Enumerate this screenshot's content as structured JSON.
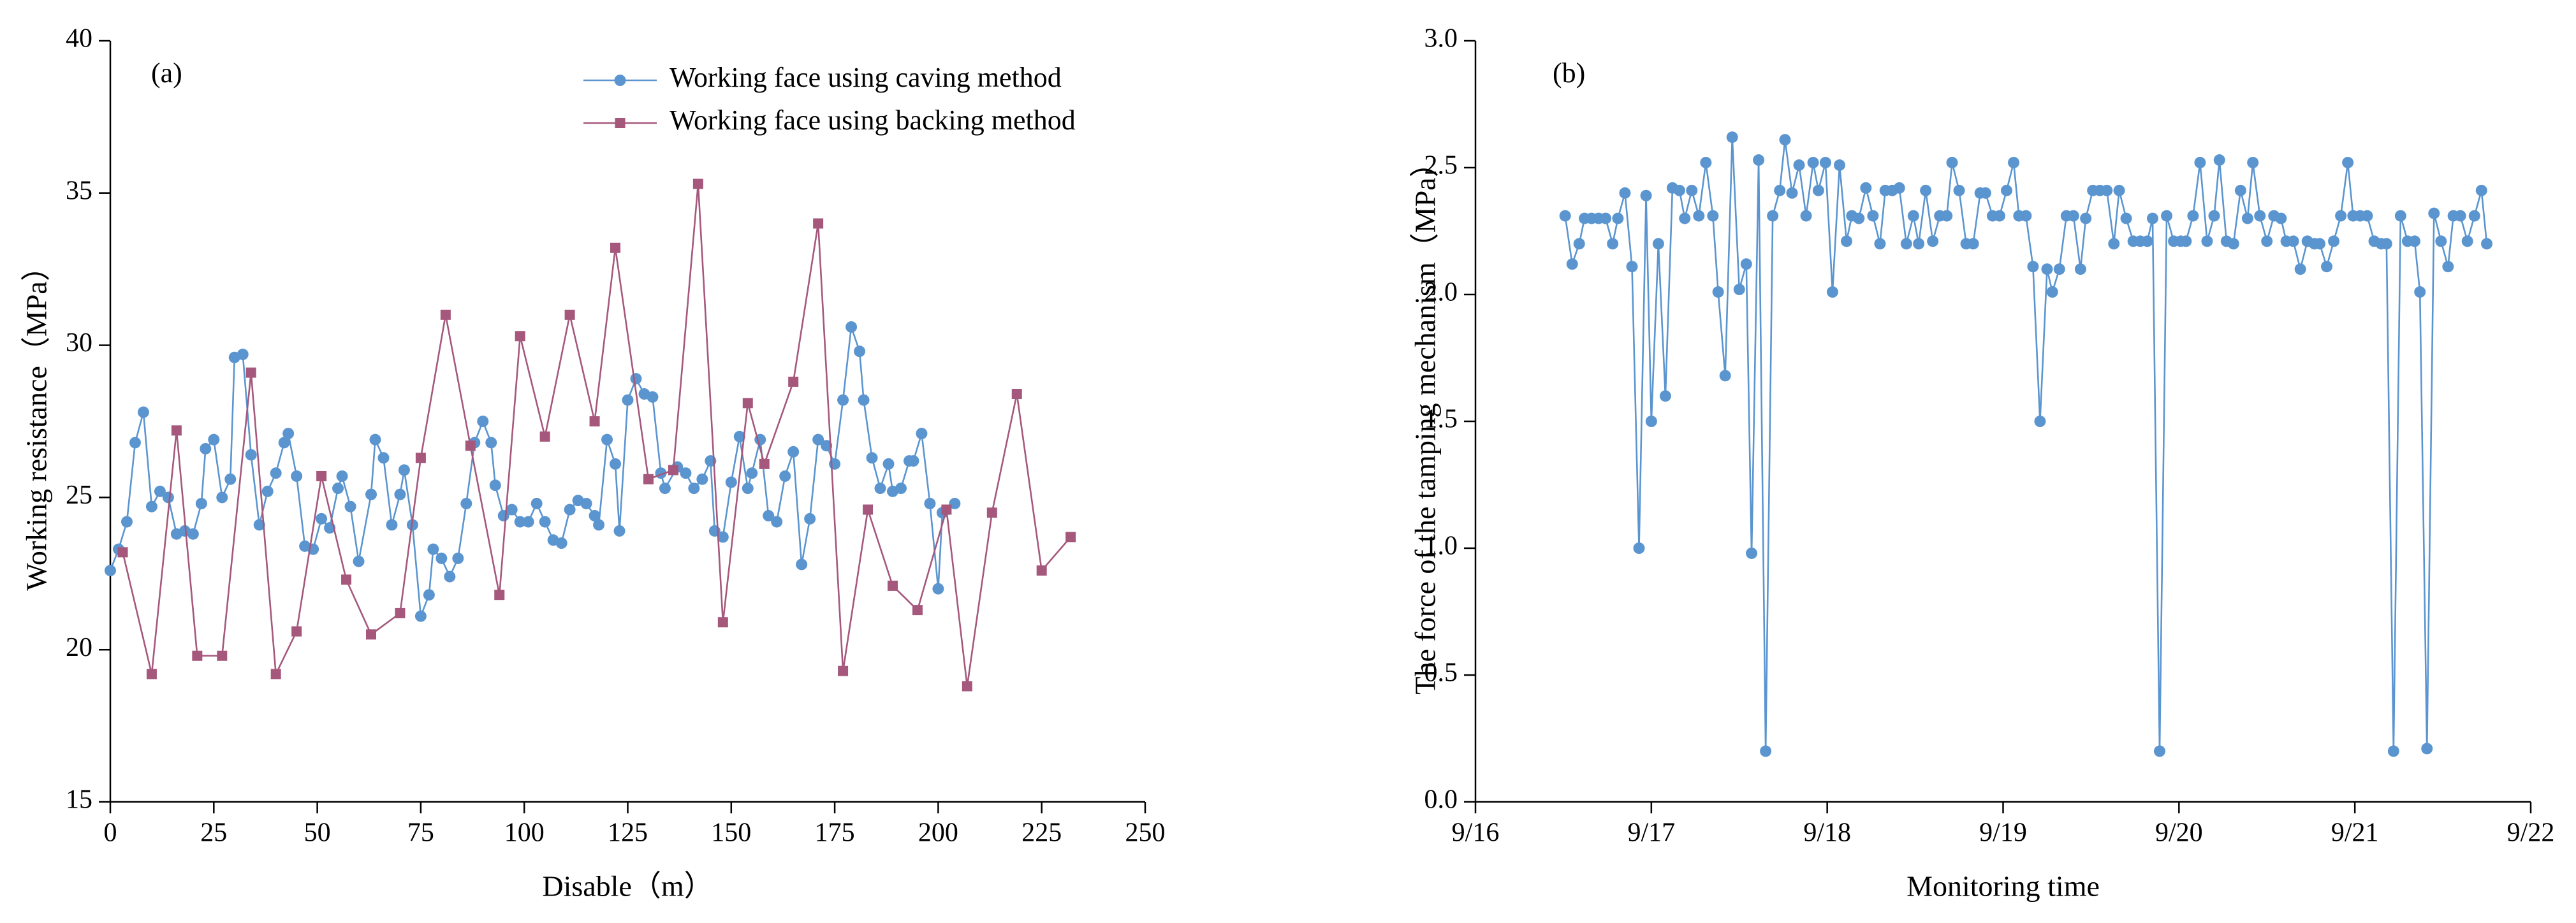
{
  "chart_data": [
    {
      "type": "line",
      "annotation": "(a)",
      "x_label": "Disable（m）",
      "y_label": "Working resistance（MPa）",
      "xlim": [
        0,
        250
      ],
      "xticks": [
        0,
        25,
        50,
        75,
        100,
        125,
        150,
        175,
        200,
        225,
        250
      ],
      "ylim": [
        15,
        40
      ],
      "yticks": [
        15,
        20,
        25,
        30,
        35,
        40
      ],
      "legend": "upper right",
      "series": [
        {
          "name": "Working face using caving method",
          "color": "#5b95d0",
          "marker": "circle",
          "x": [
            0,
            2,
            4,
            6,
            8,
            10,
            12,
            14,
            16,
            18,
            20,
            22,
            23,
            25,
            27,
            29,
            30,
            32,
            34,
            36,
            38,
            40,
            42,
            43,
            45,
            47,
            49,
            51,
            53,
            55,
            56,
            58,
            60,
            63,
            64,
            66,
            68,
            70,
            71,
            73,
            75,
            77,
            78,
            80,
            82,
            84,
            86,
            88,
            90,
            92,
            93,
            95,
            97,
            99,
            101,
            103,
            105,
            107,
            109,
            111,
            113,
            115,
            117,
            118,
            120,
            122,
            123,
            125,
            127,
            129,
            131,
            133,
            134,
            137,
            139,
            141,
            143,
            145,
            146,
            148,
            150,
            152,
            154,
            155,
            157,
            159,
            161,
            163,
            165,
            167,
            169,
            171,
            173,
            175,
            177,
            179,
            181,
            182,
            184,
            186,
            188,
            189,
            191,
            193,
            194,
            196,
            198,
            200,
            201,
            204
          ],
          "values": [
            22.6,
            23.3,
            24.2,
            26.8,
            27.8,
            24.7,
            25.2,
            25.0,
            23.8,
            23.9,
            23.8,
            24.8,
            26.6,
            26.9,
            25.0,
            25.6,
            29.6,
            29.7,
            26.4,
            24.1,
            25.2,
            25.8,
            26.8,
            27.1,
            25.7,
            23.4,
            23.3,
            24.3,
            24.0,
            25.3,
            25.7,
            24.7,
            22.9,
            25.1,
            26.9,
            26.3,
            24.1,
            25.1,
            25.9,
            24.1,
            21.1,
            21.8,
            23.3,
            23.0,
            22.4,
            23.0,
            24.8,
            26.8,
            27.5,
            26.8,
            25.4,
            24.4,
            24.6,
            24.2,
            24.2,
            24.8,
            24.2,
            23.6,
            23.5,
            24.6,
            24.9,
            24.8,
            24.4,
            24.1,
            26.9,
            26.1,
            23.9,
            28.2,
            28.9,
            28.4,
            28.3,
            25.8,
            25.3,
            26.0,
            25.8,
            25.3,
            25.6,
            26.2,
            23.9,
            23.7,
            25.5,
            27.0,
            25.3,
            25.8,
            26.9,
            24.4,
            24.2,
            25.7,
            26.5,
            22.8,
            24.3,
            26.9,
            26.7,
            26.1,
            28.2,
            30.6,
            29.8,
            28.2,
            26.3,
            25.3,
            26.1,
            25.2,
            25.3,
            26.2,
            26.2,
            27.1,
            24.8,
            22.0,
            24.5,
            24.8
          ]
        },
        {
          "name": "Working face using backing method",
          "color": "#a5587c",
          "marker": "square",
          "x": [
            3,
            10,
            16,
            21,
            27,
            34,
            40,
            45,
            51,
            57,
            63,
            70,
            75,
            81,
            87,
            94,
            99,
            105,
            111,
            117,
            122,
            130,
            136,
            142,
            148,
            154,
            158,
            165,
            171,
            177,
            183,
            189,
            195,
            202,
            207,
            213,
            219,
            225,
            232
          ],
          "values": [
            23.2,
            19.2,
            27.2,
            19.8,
            19.8,
            29.1,
            19.2,
            20.6,
            25.7,
            22.3,
            20.5,
            21.2,
            26.3,
            31.0,
            26.7,
            21.8,
            30.3,
            27.0,
            31.0,
            27.5,
            33.2,
            25.6,
            25.9,
            35.3,
            20.9,
            28.1,
            26.1,
            28.8,
            34.0,
            19.3,
            24.6,
            22.1,
            21.3,
            24.6,
            18.8,
            24.5,
            28.4,
            22.6,
            23.7
          ]
        }
      ]
    },
    {
      "type": "line",
      "annotation": "(b)",
      "x_label": "Monitoring time",
      "y_label": "The force of the tamping mechanism（MPa）",
      "xlim": [
        16,
        22
      ],
      "xticks": [
        {
          "value": 16,
          "label": "9/16"
        },
        {
          "value": 17,
          "label": "9/17"
        },
        {
          "value": 18,
          "label": "9/18"
        },
        {
          "value": 19,
          "label": "9/19"
        },
        {
          "value": 20,
          "label": "9/20"
        },
        {
          "value": 21,
          "label": "9/21"
        },
        {
          "value": 22,
          "label": "9/22"
        }
      ],
      "ylim": [
        0,
        3
      ],
      "yticks": [
        {
          "value": 0,
          "label": "0.0"
        },
        0.5,
        {
          "value": 1,
          "label": "1.0"
        },
        1.5,
        {
          "value": 2,
          "label": "2.0"
        },
        2.5,
        {
          "value": 3,
          "label": "3.0"
        }
      ],
      "series": [
        {
          "color": "#5b95d0",
          "marker": "circle",
          "x": [
            16.51,
            16.55,
            16.59,
            16.62,
            16.66,
            16.7,
            16.74,
            16.78,
            16.81,
            16.85,
            16.89,
            16.93,
            16.97,
            17.0,
            17.04,
            17.08,
            17.12,
            17.16,
            17.19,
            17.23,
            17.27,
            17.31,
            17.35,
            17.38,
            17.42,
            17.46,
            17.5,
            17.54,
            17.57,
            17.61,
            17.65,
            17.69,
            17.73,
            17.76,
            17.8,
            17.84,
            17.88,
            17.92,
            17.95,
            17.99,
            18.03,
            18.07,
            18.11,
            18.14,
            18.18,
            18.22,
            18.26,
            18.3,
            18.33,
            18.37,
            18.41,
            18.45,
            18.49,
            18.52,
            18.56,
            18.6,
            18.64,
            18.68,
            18.71,
            18.75,
            18.79,
            18.83,
            18.87,
            18.9,
            18.94,
            18.98,
            19.02,
            19.06,
            19.09,
            19.13,
            19.17,
            19.21,
            19.25,
            19.28,
            19.32,
            19.36,
            19.4,
            19.44,
            19.47,
            19.51,
            19.55,
            19.59,
            19.63,
            19.66,
            19.7,
            19.74,
            19.78,
            19.82,
            19.85,
            19.89,
            19.93,
            19.97,
            20.01,
            20.04,
            20.08,
            20.12,
            20.16,
            20.2,
            20.23,
            20.27,
            20.31,
            20.35,
            20.39,
            20.42,
            20.46,
            20.5,
            20.54,
            20.58,
            20.61,
            20.65,
            20.69,
            20.73,
            20.77,
            20.8,
            20.84,
            20.88,
            20.92,
            20.96,
            20.99,
            21.03,
            21.07,
            21.11,
            21.15,
            21.18,
            21.22,
            21.26,
            21.3,
            21.34,
            21.37,
            21.41,
            21.45,
            21.49,
            21.53,
            21.56,
            21.6,
            21.64,
            21.68,
            21.72,
            21.75
          ],
          "values": [
            2.31,
            2.12,
            2.2,
            2.3,
            2.3,
            2.3,
            2.3,
            2.2,
            2.3,
            2.4,
            2.11,
            1.0,
            2.39,
            1.5,
            2.2,
            1.6,
            2.42,
            2.41,
            2.3,
            2.41,
            2.31,
            2.52,
            2.31,
            2.01,
            1.68,
            2.62,
            2.02,
            2.12,
            0.98,
            2.53,
            0.2,
            2.31,
            2.41,
            2.61,
            2.4,
            2.51,
            2.31,
            2.52,
            2.41,
            2.52,
            2.01,
            2.51,
            2.21,
            2.31,
            2.3,
            2.42,
            2.31,
            2.2,
            2.41,
            2.41,
            2.42,
            2.2,
            2.31,
            2.2,
            2.41,
            2.21,
            2.31,
            2.31,
            2.52,
            2.41,
            2.2,
            2.2,
            2.4,
            2.4,
            2.31,
            2.31,
            2.41,
            2.52,
            2.31,
            2.31,
            2.11,
            1.5,
            2.1,
            2.01,
            2.1,
            2.31,
            2.31,
            2.1,
            2.3,
            2.41,
            2.41,
            2.41,
            2.2,
            2.41,
            2.3,
            2.21,
            2.21,
            2.21,
            2.3,
            0.2,
            2.31,
            2.21,
            2.21,
            2.21,
            2.31,
            2.52,
            2.21,
            2.31,
            2.53,
            2.21,
            2.2,
            2.41,
            2.3,
            2.52,
            2.31,
            2.21,
            2.31,
            2.3,
            2.21,
            2.21,
            2.1,
            2.21,
            2.2,
            2.2,
            2.11,
            2.21,
            2.31,
            2.52,
            2.31,
            2.31,
            2.31,
            2.21,
            2.2,
            2.2,
            0.2,
            2.31,
            2.21,
            2.21,
            2.01,
            0.21,
            2.32,
            2.21,
            2.11,
            2.31,
            2.31,
            2.21,
            2.31,
            2.41,
            2.2
          ]
        }
      ]
    }
  ]
}
